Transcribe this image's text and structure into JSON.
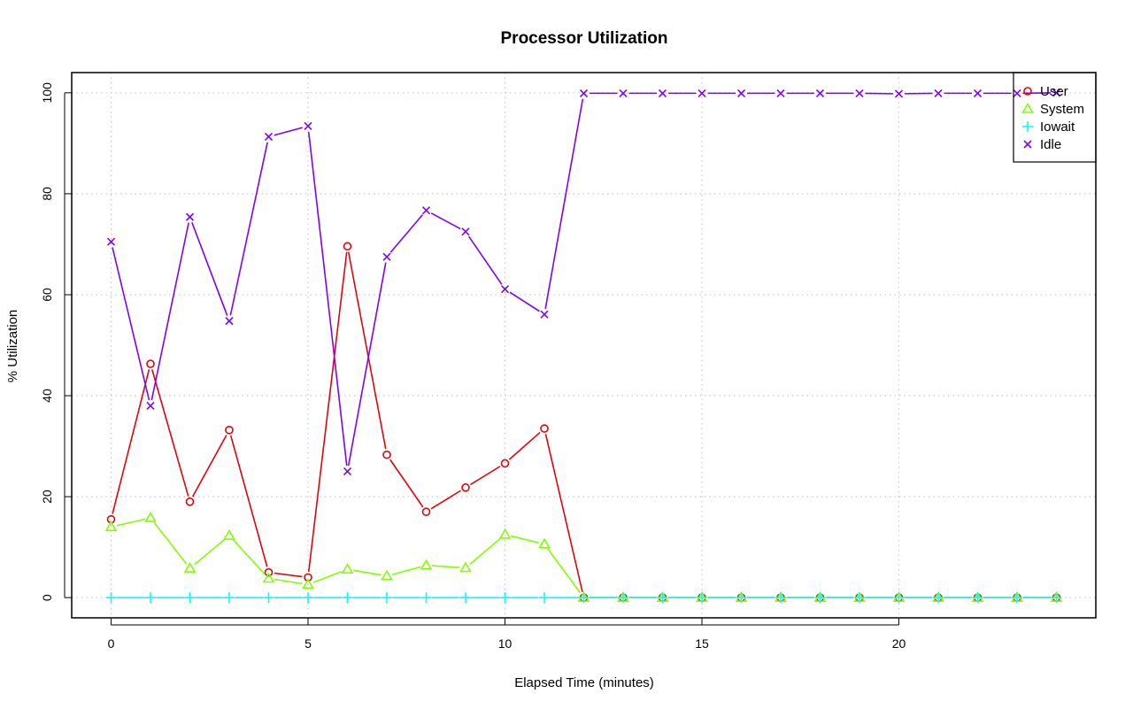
{
  "chart_data": {
    "type": "line",
    "title": "Processor Utilization",
    "xlabel": "Elapsed Time (minutes)",
    "ylabel": "% Utilization",
    "xlim": [
      -1,
      25
    ],
    "ylim": [
      -4,
      104
    ],
    "x_ticks": [
      0,
      5,
      10,
      15,
      20
    ],
    "y_ticks": [
      0,
      20,
      40,
      60,
      80,
      100
    ],
    "grid": true,
    "legend_position": "top-right",
    "x": [
      0,
      1,
      2,
      3,
      4,
      5,
      6,
      7,
      8,
      9,
      10,
      11,
      12,
      13,
      14,
      15,
      16,
      17,
      18,
      19,
      20,
      21,
      22,
      23,
      24
    ],
    "series": [
      {
        "name": "User",
        "color": "#e8000b",
        "marker": "circle",
        "values": [
          15.5,
          46.3,
          19.0,
          33.2,
          5.0,
          4.0,
          69.6,
          28.3,
          17.0,
          21.8,
          26.6,
          33.5,
          0,
          0,
          0,
          0,
          0,
          0,
          0,
          0,
          0,
          0,
          0,
          0,
          0
        ]
      },
      {
        "name": "System",
        "color": "#80ff00",
        "marker": "triangle",
        "values": [
          14.0,
          15.8,
          5.8,
          12.3,
          3.8,
          2.6,
          5.6,
          4.3,
          6.4,
          5.9,
          12.5,
          10.6,
          0,
          0,
          0,
          0,
          0,
          0,
          0,
          0,
          0,
          0,
          0,
          0,
          0
        ]
      },
      {
        "name": "Iowait",
        "color": "#00ffff",
        "marker": "plus",
        "values": [
          0,
          0,
          0,
          0,
          0,
          0,
          0,
          0,
          0,
          0,
          0,
          0,
          0,
          0,
          0,
          0,
          0,
          0,
          0,
          0,
          0,
          0,
          0,
          0,
          0
        ]
      },
      {
        "name": "Idle",
        "color": "#8000ff",
        "marker": "x",
        "values": [
          70.5,
          38.0,
          75.4,
          54.8,
          91.3,
          93.4,
          25.0,
          67.5,
          76.7,
          72.5,
          61.1,
          56.1,
          99.9,
          99.9,
          99.9,
          99.9,
          99.9,
          99.9,
          99.9,
          99.9,
          99.8,
          99.9,
          99.9,
          99.9,
          100
        ]
      }
    ]
  }
}
